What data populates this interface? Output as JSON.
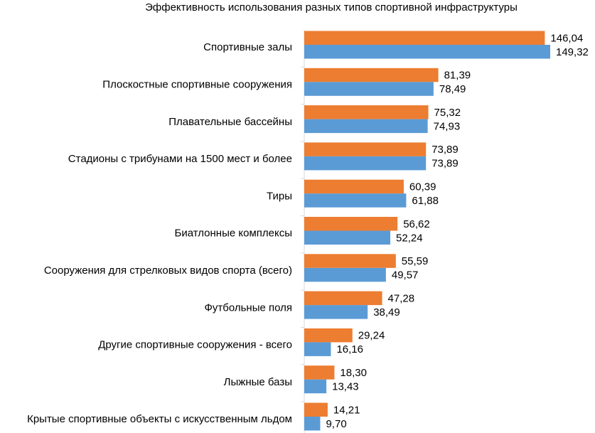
{
  "chart_data": {
    "type": "bar",
    "orientation": "horizontal",
    "title": "Эффективность использования разных типов спортивной инфраструктуры",
    "categories": [
      "Спортивные залы",
      "Плоскостные спортивные сооружения",
      "Плавательные бассейны",
      "Стадионы с трибунами на 1500 мест и более",
      "Тиры",
      "Биатлонные комплексы",
      "Сооружения для стрелковых видов спорта (всего)",
      "Футбольные поля",
      "Другие спортивные сооружения - всего",
      "Лыжные базы",
      "Крытые спортивные объекты с искусственным льдом"
    ],
    "series": [
      {
        "color": "#ED7D31",
        "values": [
          146.04,
          81.39,
          75.32,
          73.89,
          60.39,
          56.62,
          55.59,
          47.28,
          29.24,
          18.3,
          14.21
        ],
        "labels": [
          "146,04",
          "81,39",
          "75,32",
          "73,89",
          "60,39",
          "56,62",
          "55,59",
          "47,28",
          "29,24",
          "18,30",
          "14,21"
        ]
      },
      {
        "color": "#5B9BD5",
        "values": [
          149.32,
          78.49,
          74.93,
          73.89,
          61.88,
          52.24,
          49.57,
          38.49,
          16.16,
          13.43,
          9.7
        ],
        "labels": [
          "149,32",
          "78,49",
          "74,93",
          "73,89",
          "61,88",
          "52,24",
          "49,57",
          "38,49",
          "16,16",
          "13,43",
          "9,70"
        ]
      }
    ],
    "xlim": [
      0,
      149.32
    ],
    "grid": false,
    "legend": "none"
  }
}
